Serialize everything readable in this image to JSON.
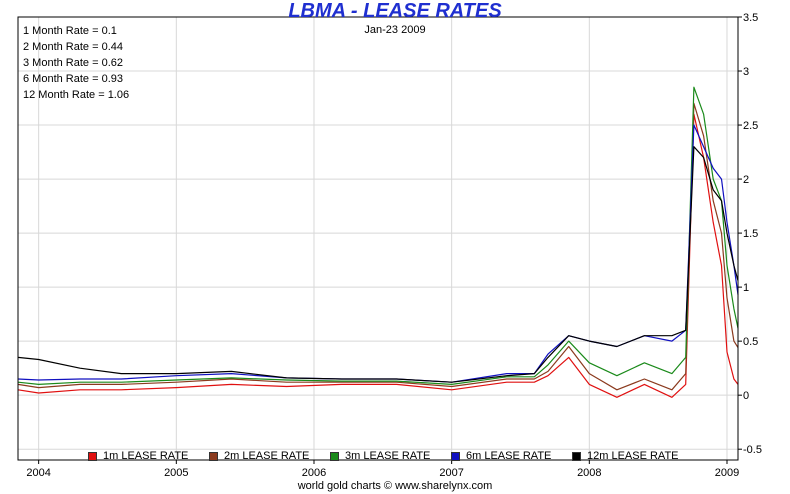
{
  "chart_data": {
    "type": "line",
    "title": "LBMA - LEASE RATES",
    "date_label": "Jan-23  2009",
    "credit": "world gold charts © www.sharelynx.com",
    "summary": [
      "1 Month Rate = 0.1",
      "2 Month Rate = 0.44",
      "3 Month Rate = 0.62",
      "6 Month Rate = 0.93",
      "12 Month Rate = 1.06"
    ],
    "x_ticks": [
      "2004",
      "2005",
      "2006",
      "2007",
      "2008",
      "2009"
    ],
    "y_ticks": [
      "3.5",
      "3",
      "2.5",
      "2",
      "1.5",
      "1",
      "0.5",
      "0",
      "-0.5"
    ],
    "xlim": [
      2003.85,
      2009.08
    ],
    "ylim": [
      -0.6,
      3.5
    ],
    "grid": true,
    "legend_position": "bottom",
    "series": [
      {
        "name": "1m LEASE RATE",
        "color": "#e01010",
        "points": [
          [
            2003.85,
            0.05
          ],
          [
            2004.0,
            0.02
          ],
          [
            2004.3,
            0.05
          ],
          [
            2004.6,
            0.05
          ],
          [
            2005.0,
            0.07
          ],
          [
            2005.4,
            0.1
          ],
          [
            2005.8,
            0.08
          ],
          [
            2006.2,
            0.1
          ],
          [
            2006.6,
            0.1
          ],
          [
            2007.0,
            0.05
          ],
          [
            2007.4,
            0.12
          ],
          [
            2007.6,
            0.12
          ],
          [
            2007.7,
            0.18
          ],
          [
            2007.85,
            0.35
          ],
          [
            2008.0,
            0.1
          ],
          [
            2008.2,
            -0.02
          ],
          [
            2008.4,
            0.1
          ],
          [
            2008.6,
            -0.02
          ],
          [
            2008.7,
            0.1
          ],
          [
            2008.76,
            2.6
          ],
          [
            2008.83,
            2.2
          ],
          [
            2008.9,
            1.6
          ],
          [
            2008.96,
            1.2
          ],
          [
            2009.0,
            0.4
          ],
          [
            2009.05,
            0.15
          ],
          [
            2009.08,
            0.1
          ]
        ]
      },
      {
        "name": "2m LEASE RATE",
        "color": "#8b3a1e",
        "points": [
          [
            2003.85,
            0.1
          ],
          [
            2004.0,
            0.07
          ],
          [
            2004.3,
            0.1
          ],
          [
            2004.6,
            0.1
          ],
          [
            2005.0,
            0.12
          ],
          [
            2005.4,
            0.15
          ],
          [
            2005.8,
            0.12
          ],
          [
            2006.2,
            0.12
          ],
          [
            2006.6,
            0.12
          ],
          [
            2007.0,
            0.08
          ],
          [
            2007.4,
            0.15
          ],
          [
            2007.6,
            0.15
          ],
          [
            2007.7,
            0.22
          ],
          [
            2007.85,
            0.45
          ],
          [
            2008.0,
            0.2
          ],
          [
            2008.2,
            0.05
          ],
          [
            2008.4,
            0.15
          ],
          [
            2008.6,
            0.05
          ],
          [
            2008.7,
            0.2
          ],
          [
            2008.76,
            2.7
          ],
          [
            2008.83,
            2.4
          ],
          [
            2008.9,
            1.8
          ],
          [
            2008.96,
            1.5
          ],
          [
            2009.0,
            0.9
          ],
          [
            2009.05,
            0.5
          ],
          [
            2009.08,
            0.44
          ]
        ]
      },
      {
        "name": "3m LEASE RATE",
        "color": "#1a8a1a",
        "points": [
          [
            2003.85,
            0.12
          ],
          [
            2004.0,
            0.1
          ],
          [
            2004.3,
            0.12
          ],
          [
            2004.6,
            0.12
          ],
          [
            2005.0,
            0.14
          ],
          [
            2005.4,
            0.16
          ],
          [
            2005.8,
            0.14
          ],
          [
            2006.2,
            0.13
          ],
          [
            2006.6,
            0.13
          ],
          [
            2007.0,
            0.1
          ],
          [
            2007.4,
            0.17
          ],
          [
            2007.6,
            0.17
          ],
          [
            2007.7,
            0.28
          ],
          [
            2007.85,
            0.5
          ],
          [
            2008.0,
            0.3
          ],
          [
            2008.2,
            0.18
          ],
          [
            2008.4,
            0.3
          ],
          [
            2008.6,
            0.2
          ],
          [
            2008.7,
            0.35
          ],
          [
            2008.76,
            2.85
          ],
          [
            2008.83,
            2.6
          ],
          [
            2008.9,
            2.0
          ],
          [
            2008.96,
            1.8
          ],
          [
            2009.0,
            1.2
          ],
          [
            2009.05,
            0.8
          ],
          [
            2009.08,
            0.62
          ]
        ]
      },
      {
        "name": "6m LEASE RATE",
        "color": "#1010c0",
        "points": [
          [
            2003.85,
            0.15
          ],
          [
            2004.0,
            0.14
          ],
          [
            2004.3,
            0.15
          ],
          [
            2004.6,
            0.15
          ],
          [
            2005.0,
            0.18
          ],
          [
            2005.4,
            0.2
          ],
          [
            2005.8,
            0.16
          ],
          [
            2006.2,
            0.15
          ],
          [
            2006.6,
            0.15
          ],
          [
            2007.0,
            0.12
          ],
          [
            2007.4,
            0.2
          ],
          [
            2007.6,
            0.2
          ],
          [
            2007.7,
            0.38
          ],
          [
            2007.85,
            0.55
          ],
          [
            2008.0,
            0.5
          ],
          [
            2008.2,
            0.45
          ],
          [
            2008.4,
            0.55
          ],
          [
            2008.6,
            0.5
          ],
          [
            2008.7,
            0.6
          ],
          [
            2008.76,
            2.5
          ],
          [
            2008.83,
            2.3
          ],
          [
            2008.9,
            2.1
          ],
          [
            2008.96,
            2.0
          ],
          [
            2009.0,
            1.6
          ],
          [
            2009.05,
            1.2
          ],
          [
            2009.08,
            0.93
          ]
        ]
      },
      {
        "name": "12m LEASE RATE",
        "color": "#000000",
        "points": [
          [
            2003.85,
            0.35
          ],
          [
            2004.0,
            0.33
          ],
          [
            2004.3,
            0.25
          ],
          [
            2004.6,
            0.2
          ],
          [
            2005.0,
            0.2
          ],
          [
            2005.4,
            0.22
          ],
          [
            2005.8,
            0.16
          ],
          [
            2006.2,
            0.15
          ],
          [
            2006.6,
            0.15
          ],
          [
            2007.0,
            0.12
          ],
          [
            2007.4,
            0.18
          ],
          [
            2007.6,
            0.2
          ],
          [
            2007.7,
            0.35
          ],
          [
            2007.85,
            0.55
          ],
          [
            2008.0,
            0.5
          ],
          [
            2008.2,
            0.45
          ],
          [
            2008.4,
            0.55
          ],
          [
            2008.6,
            0.55
          ],
          [
            2008.7,
            0.6
          ],
          [
            2008.76,
            2.3
          ],
          [
            2008.83,
            2.2
          ],
          [
            2008.9,
            1.9
          ],
          [
            2008.96,
            1.8
          ],
          [
            2009.0,
            1.5
          ],
          [
            2009.05,
            1.2
          ],
          [
            2009.08,
            1.06
          ]
        ]
      }
    ]
  }
}
